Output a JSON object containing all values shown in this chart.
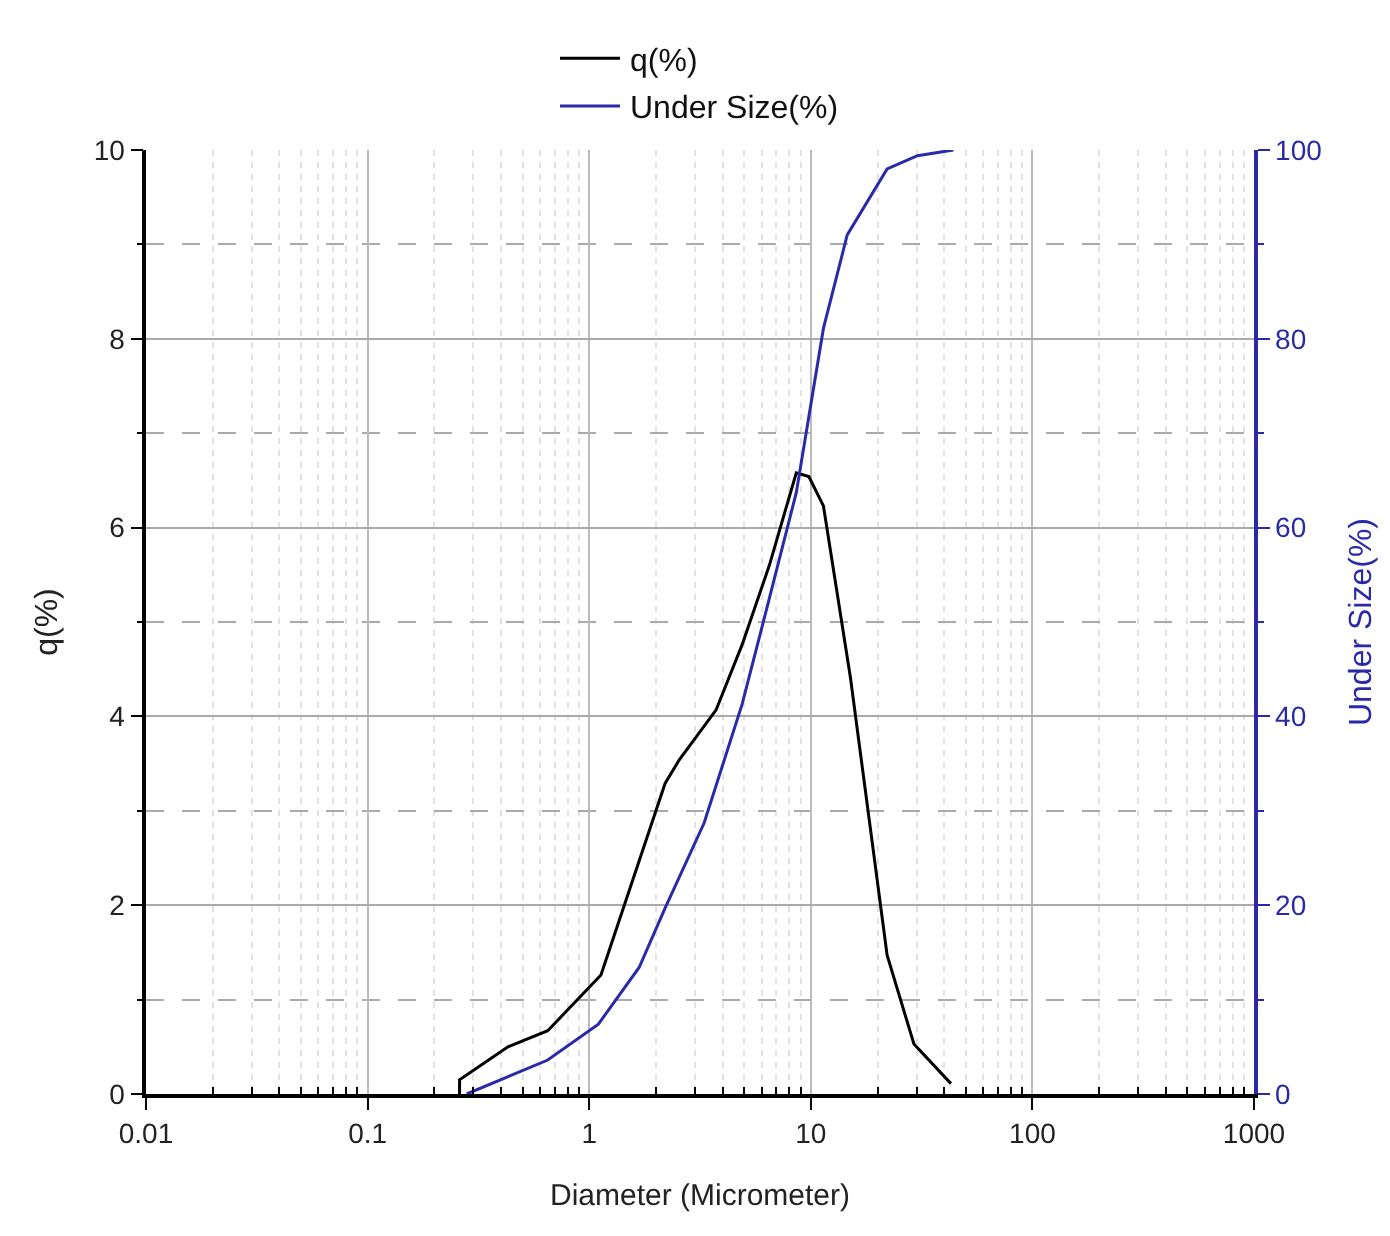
{
  "chart_data": {
    "type": "line",
    "xlabel": "Diameter (Micrometer)",
    "ylabel": "q(%)",
    "y2label": "Under Size(%)",
    "log": "x",
    "grid": true,
    "legend": "top",
    "line_style": "solid",
    "marker": "none",
    "xlim": [
      0.01,
      1000
    ],
    "xticks": [
      0.01,
      0.1,
      1,
      10,
      100,
      1000
    ],
    "ylim": [
      0,
      10
    ],
    "yticks": [
      0,
      2,
      4,
      6,
      8,
      10
    ],
    "y2lim": [
      0,
      100
    ],
    "y2ticks": [
      0,
      20,
      40,
      60,
      80,
      100
    ],
    "series": [
      {
        "name": "q(%)",
        "color": "#000000",
        "x": [
          0.26,
          0.26,
          0.43,
          0.65,
          1.13,
          2.2,
          2.55,
          3.74,
          4.9,
          6.5,
          8.6,
          9.8,
          11.4,
          15.1,
          22.1,
          29.2,
          42.9
        ],
        "values": [
          0,
          0.15,
          0.5,
          0.67,
          1.26,
          3.29,
          3.54,
          4.07,
          4.76,
          5.6,
          6.58,
          6.54,
          6.23,
          4.41,
          1.47,
          0.53,
          0.11
        ]
      },
      {
        "name": "Under Size(%)",
        "color": "#2a2aa8",
        "axis": "y2",
        "x": [
          0.28,
          0.65,
          1.1,
          1.68,
          2.2,
          3.3,
          4.9,
          6.5,
          8.6,
          11.4,
          14.6,
          22.1,
          30.3,
          44
        ],
        "values": [
          0,
          3.6,
          7.4,
          13.4,
          19.7,
          28.7,
          41.3,
          52.5,
          63.7,
          81.1,
          91,
          98,
          99.4,
          100
        ]
      }
    ]
  }
}
